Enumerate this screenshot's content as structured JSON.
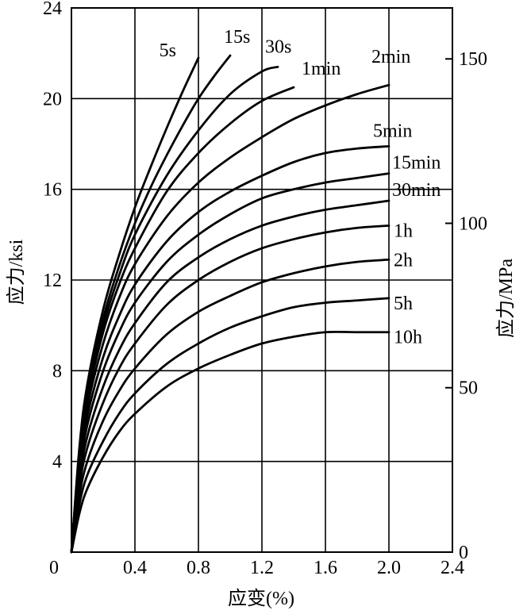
{
  "chart_data": {
    "type": "line",
    "xlabel": "应变(%)",
    "ylabel": "应力/ksi",
    "ylabel_right": "应力/MPa",
    "xlim": [
      0,
      2.4
    ],
    "ylim": [
      0,
      24
    ],
    "ylim_right_mpa": [
      0,
      165.5
    ],
    "x_ticks": [
      "0",
      "0.4",
      "0.8",
      "1.2",
      "1.6",
      "2.0",
      "2.4"
    ],
    "y_ticks": [
      "4",
      "8",
      "12",
      "16",
      "20",
      "24"
    ],
    "y_ticks_right": [
      "0",
      "50",
      "100",
      "150"
    ],
    "y_ticks_right_values": [
      0,
      50,
      100,
      150
    ],
    "grid": true,
    "series": [
      {
        "name": "5s",
        "x": [
          0,
          0.05,
          0.1,
          0.2,
          0.3,
          0.4,
          0.5,
          0.6,
          0.7,
          0.8
        ],
        "y": [
          0,
          4.6,
          7.4,
          10.7,
          13.1,
          15.2,
          17.0,
          18.7,
          20.3,
          21.8
        ]
      },
      {
        "name": "15s",
        "x": [
          0,
          0.05,
          0.1,
          0.2,
          0.3,
          0.4,
          0.5,
          0.6,
          0.7,
          0.8,
          0.9,
          1.0
        ],
        "y": [
          0,
          4.4,
          7.1,
          10.3,
          12.6,
          14.5,
          16.1,
          17.5,
          18.8,
          20.0,
          21.0,
          21.9
        ]
      },
      {
        "name": "30s",
        "x": [
          0,
          0.05,
          0.1,
          0.2,
          0.3,
          0.4,
          0.6,
          0.8,
          1.0,
          1.2,
          1.3
        ],
        "y": [
          0,
          4.3,
          6.9,
          10.0,
          12.2,
          14.0,
          16.6,
          18.6,
          20.2,
          21.2,
          21.4
        ]
      },
      {
        "name": "1min",
        "x": [
          0,
          0.05,
          0.1,
          0.2,
          0.3,
          0.4,
          0.6,
          0.8,
          1.0,
          1.2,
          1.4
        ],
        "y": [
          0,
          4.2,
          6.7,
          9.7,
          11.8,
          13.4,
          15.9,
          17.6,
          18.9,
          19.9,
          20.5
        ]
      },
      {
        "name": "2min",
        "x": [
          0,
          0.05,
          0.1,
          0.2,
          0.3,
          0.4,
          0.6,
          0.8,
          1.0,
          1.2,
          1.4,
          1.6,
          1.8,
          2.0
        ],
        "y": [
          0,
          4.0,
          6.4,
          9.2,
          11.2,
          12.7,
          14.8,
          16.3,
          17.4,
          18.3,
          19.1,
          19.7,
          20.2,
          20.6
        ]
      },
      {
        "name": "5min",
        "x": [
          0,
          0.05,
          0.1,
          0.2,
          0.3,
          0.4,
          0.6,
          0.8,
          1.0,
          1.2,
          1.4,
          1.6,
          1.8,
          2.0
        ],
        "y": [
          0,
          3.8,
          6.0,
          8.6,
          10.4,
          11.8,
          13.7,
          15.0,
          15.9,
          16.6,
          17.2,
          17.6,
          17.8,
          17.9
        ]
      },
      {
        "name": "15min",
        "x": [
          0,
          0.05,
          0.1,
          0.2,
          0.3,
          0.4,
          0.6,
          0.8,
          1.0,
          1.2,
          1.4,
          1.6,
          1.8,
          2.0
        ],
        "y": [
          0,
          3.5,
          5.6,
          8.0,
          9.7,
          11.0,
          12.8,
          14.0,
          14.9,
          15.6,
          16.0,
          16.3,
          16.5,
          16.7
        ]
      },
      {
        "name": "30min",
        "x": [
          0,
          0.05,
          0.1,
          0.2,
          0.3,
          0.4,
          0.6,
          0.8,
          1.0,
          1.2,
          1.4,
          1.6,
          1.8,
          2.0
        ],
        "y": [
          0,
          3.2,
          5.1,
          7.3,
          8.9,
          10.1,
          11.9,
          13.0,
          13.8,
          14.4,
          14.8,
          15.1,
          15.3,
          15.5
        ]
      },
      {
        "name": "1h",
        "x": [
          0,
          0.05,
          0.1,
          0.2,
          0.3,
          0.4,
          0.6,
          0.8,
          1.0,
          1.2,
          1.4,
          1.6,
          1.8,
          2.0
        ],
        "y": [
          0,
          2.9,
          4.6,
          6.6,
          8.1,
          9.2,
          10.9,
          12.0,
          12.8,
          13.4,
          13.8,
          14.1,
          14.3,
          14.4
        ]
      },
      {
        "name": "2h",
        "x": [
          0,
          0.05,
          0.1,
          0.2,
          0.3,
          0.4,
          0.6,
          0.8,
          1.0,
          1.2,
          1.4,
          1.6,
          1.8,
          2.0
        ],
        "y": [
          0,
          2.5,
          4.0,
          5.8,
          7.1,
          8.1,
          9.6,
          10.6,
          11.3,
          11.9,
          12.3,
          12.6,
          12.8,
          12.9
        ]
      },
      {
        "name": "5h",
        "x": [
          0,
          0.05,
          0.1,
          0.2,
          0.3,
          0.4,
          0.6,
          0.8,
          1.0,
          1.2,
          1.4,
          1.6,
          1.8,
          2.0
        ],
        "y": [
          0,
          2.1,
          3.4,
          4.9,
          6.1,
          7.0,
          8.3,
          9.2,
          9.9,
          10.4,
          10.8,
          11.0,
          11.1,
          11.2
        ]
      },
      {
        "name": "10h",
        "x": [
          0,
          0.05,
          0.1,
          0.2,
          0.3,
          0.4,
          0.6,
          0.8,
          1.0,
          1.2,
          1.4,
          1.6,
          1.8,
          2.0
        ],
        "y": [
          0,
          1.7,
          2.8,
          4.2,
          5.3,
          6.1,
          7.3,
          8.1,
          8.7,
          9.2,
          9.5,
          9.7,
          9.7,
          9.7
        ]
      }
    ]
  }
}
